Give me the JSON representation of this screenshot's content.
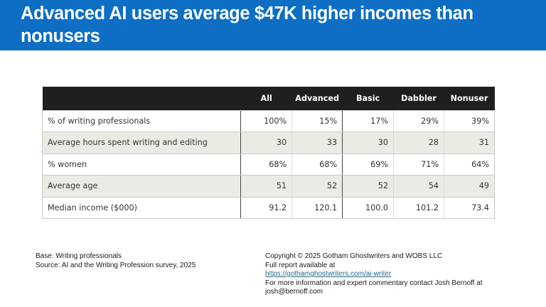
{
  "title": {
    "text": "Advanced AI users average $47K higher incomes than nonusers",
    "background_color": "#0d6ec4"
  },
  "table": {
    "columns": [
      "",
      "All",
      "Advanced",
      "Basic",
      "Dabbler",
      "Nonuser"
    ],
    "rows": [
      {
        "label": "% of writing professionals",
        "values": [
          "100%",
          "15%",
          "17%",
          "29%",
          "39%"
        ]
      },
      {
        "label": "Average hours spent writing and editing",
        "values": [
          "30",
          "33",
          "30",
          "28",
          "31"
        ]
      },
      {
        "label": "% women",
        "values": [
          "68%",
          "68%",
          "69%",
          "71%",
          "64%"
        ]
      },
      {
        "label": "Average age",
        "values": [
          "51",
          "52",
          "52",
          "54",
          "49"
        ]
      },
      {
        "label": "Median income ($000)",
        "values": [
          "91.2",
          "120.1",
          "100.0",
          "101.2",
          "73.4"
        ]
      }
    ]
  },
  "notes": {
    "base": "Base: Writing professionals",
    "source": "Source: AI and the Writing Profession survey, 2025",
    "copyright": "Copyright © 2025 Gotham Ghostwriters and WOBS LLC",
    "report_label": "Full report available at",
    "report_link": "https://gothamghostwriters.com/ai-writer",
    "contact_line": "For more information and expert commentary contact Josh Bernoff at",
    "contact_email": "josh@bernoff.com"
  }
}
